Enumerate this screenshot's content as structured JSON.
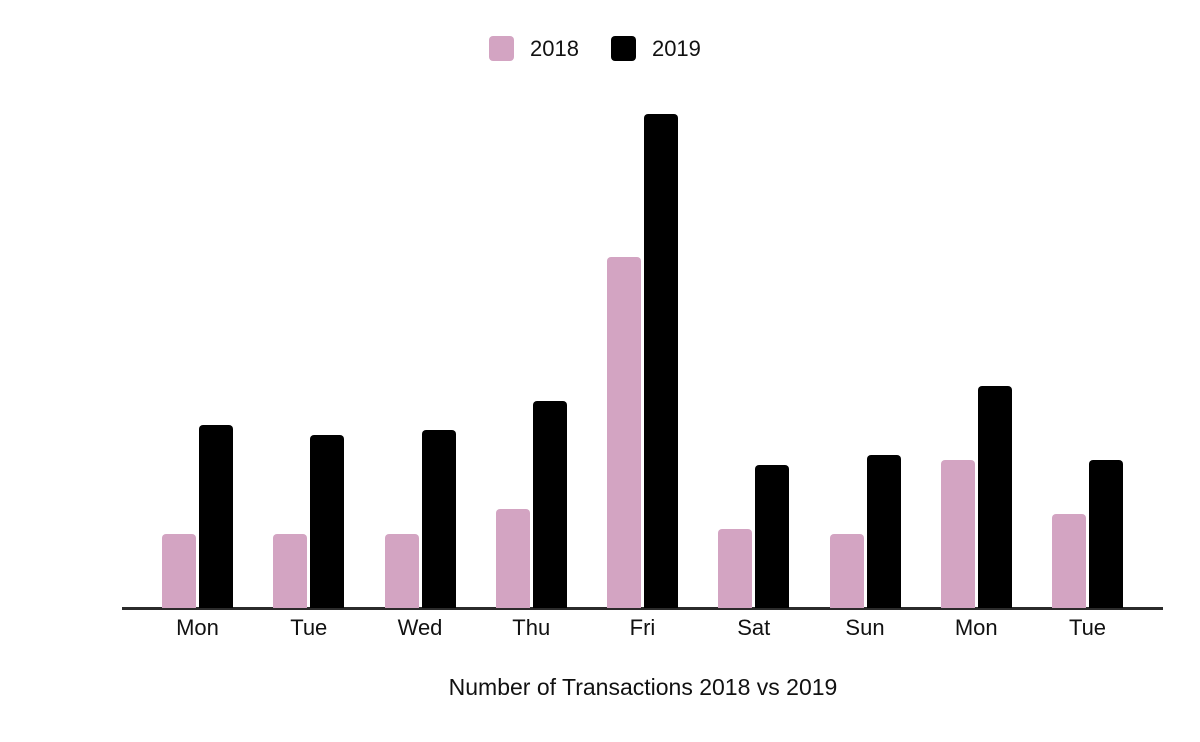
{
  "chart_data": {
    "type": "bar",
    "title": "Number of Transactions 2018 vs 2019",
    "categories": [
      "Mon",
      "Tue",
      "Wed",
      "Thu",
      "Fri",
      "Sat",
      "Sun",
      "Mon",
      "Tue"
    ],
    "series": [
      {
        "name": "2018",
        "color": "#d3a4c2",
        "values": [
          15,
          15,
          15,
          20,
          71,
          16,
          15,
          30,
          19
        ]
      },
      {
        "name": "2019",
        "color": "#000000",
        "values": [
          37,
          35,
          36,
          42,
          100,
          29,
          31,
          45,
          30
        ]
      }
    ],
    "value_scale": "relative units; no y-axis shown, 100 = tallest bar (Fri 2019)",
    "ylim": [
      0,
      103
    ],
    "xlabel": "",
    "ylabel": "",
    "grid": false,
    "legend_position": "top-center",
    "axis_color": "#2b2b2b",
    "background_color": "#ffffff"
  }
}
